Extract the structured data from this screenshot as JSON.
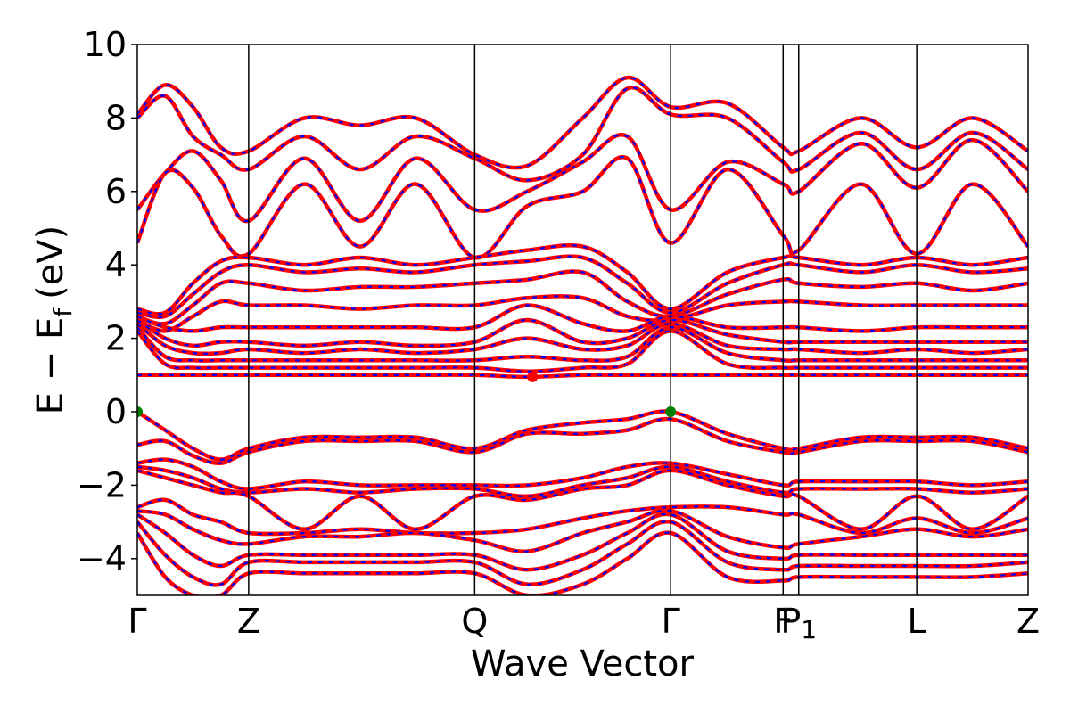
{
  "chart_data": {
    "type": "line",
    "title": "",
    "xlabel": "Wave Vector",
    "ylabel": "E − E_f (eV)",
    "ylabel_main": "E − E",
    "ylabel_sub": "f",
    "ylabel_unit": "(eV)",
    "ylim": [
      -5,
      10
    ],
    "yticks": [
      -4,
      -2,
      0,
      2,
      4,
      6,
      8,
      10
    ],
    "xlim": [
      0,
      8
    ],
    "kpoints": [
      {
        "label": "Γ",
        "x": 0
      },
      {
        "label": "Z",
        "x": 1.0
      },
      {
        "label": "Q",
        "x": 3.03
      },
      {
        "label": "Γ",
        "x": 4.79
      },
      {
        "label": "F",
        "x": 5.8
      },
      {
        "label": "P",
        "sub": "1",
        "x": 5.94
      },
      {
        "label": "L",
        "x": 7.0
      },
      {
        "label": "Z",
        "x": 8.0
      }
    ],
    "colors": {
      "band_main": "#ff0000",
      "band_dash": "#0000ff",
      "marker": "#008000",
      "marker2": "#ff0000"
    },
    "markers": [
      {
        "name": "VBM",
        "x": 0,
        "y": 0,
        "color": "#008000"
      },
      {
        "name": "VBM",
        "x": 4.79,
        "y": 0,
        "color": "#008000"
      },
      {
        "name": "CBM",
        "x": 3.55,
        "y": 0.95,
        "color": "#ff0000"
      }
    ],
    "series": [
      {
        "x": [
          0,
          0.25,
          0.5,
          0.75,
          1.0,
          1.5,
          2.0,
          2.5,
          3.03,
          3.5,
          4.0,
          4.4,
          4.79,
          5.3,
          5.8,
          5.94,
          6.5,
          7.0,
          7.5,
          8.0
        ],
        "values": [
          8.1,
          8.9,
          8.3,
          7.2,
          7.1,
          8.0,
          7.8,
          8.0,
          7.0,
          6.7,
          8.0,
          9.1,
          8.3,
          8.4,
          7.2,
          7.1,
          8.0,
          7.2,
          8.0,
          7.1
        ]
      },
      {
        "x": [
          0,
          0.25,
          0.5,
          0.75,
          1.0,
          1.5,
          2.0,
          2.5,
          3.03,
          3.5,
          4.0,
          4.4,
          4.79,
          5.3,
          5.8,
          5.94,
          6.5,
          7.0,
          7.5,
          8.0
        ],
        "values": [
          8.0,
          8.6,
          7.5,
          7.0,
          6.6,
          7.5,
          6.6,
          7.5,
          6.9,
          6.3,
          7.0,
          8.8,
          8.1,
          8.0,
          6.8,
          6.6,
          7.6,
          6.6,
          7.6,
          6.6
        ]
      },
      {
        "x": [
          0,
          0.25,
          0.5,
          0.75,
          1.0,
          1.5,
          2.0,
          2.5,
          3.03,
          3.5,
          4.0,
          4.4,
          4.79,
          5.3,
          5.8,
          5.94,
          6.5,
          7.0,
          7.5,
          8.0
        ],
        "values": [
          5.5,
          6.5,
          7.1,
          6.3,
          5.2,
          6.9,
          5.2,
          6.9,
          5.5,
          6.0,
          6.8,
          7.5,
          5.5,
          6.8,
          6.2,
          6.0,
          7.3,
          6.1,
          7.4,
          6.0
        ]
      },
      {
        "x": [
          0,
          0.25,
          0.5,
          0.75,
          1.0,
          1.5,
          2.0,
          2.5,
          3.03,
          3.5,
          4.0,
          4.4,
          4.79,
          5.3,
          5.8,
          5.94,
          6.5,
          7.0,
          7.5,
          8.0
        ],
        "values": [
          4.6,
          6.5,
          6.1,
          4.8,
          4.3,
          6.2,
          4.5,
          6.2,
          4.2,
          5.6,
          6.0,
          6.9,
          4.6,
          6.6,
          4.8,
          4.4,
          6.2,
          4.3,
          6.2,
          4.5
        ]
      },
      {
        "x": [
          0,
          0.25,
          0.5,
          0.75,
          1.0,
          1.5,
          2.0,
          2.5,
          3.03,
          3.5,
          4.0,
          4.4,
          4.79,
          5.3,
          5.8,
          5.94,
          6.5,
          7.0,
          7.5,
          8.0
        ],
        "values": [
          2.8,
          2.7,
          3.5,
          4.1,
          4.2,
          4.0,
          4.2,
          4.0,
          4.2,
          4.4,
          4.5,
          3.8,
          2.8,
          3.8,
          4.2,
          4.2,
          4.0,
          4.2,
          4.0,
          4.2
        ]
      },
      {
        "x": [
          0,
          0.25,
          0.5,
          0.75,
          1.0,
          1.5,
          2.0,
          2.5,
          3.03,
          3.5,
          4.0,
          4.4,
          4.79,
          5.3,
          5.8,
          5.94,
          6.5,
          7.0,
          7.5,
          8.0
        ],
        "values": [
          2.7,
          2.6,
          3.2,
          3.8,
          4.0,
          3.8,
          3.9,
          3.8,
          4.0,
          4.1,
          4.2,
          3.5,
          2.7,
          3.5,
          4.0,
          4.0,
          3.8,
          4.0,
          3.8,
          3.9
        ]
      },
      {
        "x": [
          0,
          0.25,
          0.5,
          0.75,
          1.0,
          1.5,
          2.0,
          2.5,
          3.03,
          3.5,
          4.0,
          4.4,
          4.79,
          5.3,
          5.8,
          5.94,
          6.5,
          7.0,
          7.5,
          8.0
        ],
        "values": [
          2.6,
          2.4,
          2.9,
          3.5,
          3.5,
          3.3,
          3.4,
          3.4,
          3.5,
          3.6,
          3.8,
          3.0,
          2.6,
          3.2,
          3.6,
          3.5,
          3.4,
          3.5,
          3.3,
          3.5
        ]
      },
      {
        "x": [
          0,
          0.25,
          0.5,
          0.75,
          1.0,
          1.5,
          2.0,
          2.5,
          3.03,
          3.5,
          4.0,
          4.4,
          4.79,
          5.3,
          5.8,
          5.94,
          6.5,
          7.0,
          7.5,
          8.0
        ],
        "values": [
          2.5,
          2.2,
          2.6,
          3.0,
          2.9,
          2.9,
          2.8,
          2.9,
          2.9,
          3.1,
          3.1,
          2.6,
          2.5,
          2.9,
          3.0,
          3.0,
          2.9,
          2.9,
          2.9,
          2.9
        ]
      },
      {
        "x": [
          0,
          0.25,
          0.5,
          0.75,
          1.0,
          1.5,
          2.0,
          2.5,
          3.03,
          3.5,
          4.0,
          4.4,
          4.79,
          5.3,
          5.8,
          5.94,
          6.5,
          7.0,
          7.5,
          8.0
        ],
        "values": [
          2.6,
          2.3,
          2.2,
          2.3,
          2.3,
          2.3,
          2.3,
          2.3,
          2.3,
          2.9,
          2.4,
          2.2,
          2.6,
          2.3,
          2.3,
          2.3,
          2.2,
          2.3,
          2.3,
          2.3
        ]
      },
      {
        "x": [
          0,
          0.25,
          0.5,
          0.75,
          1.0,
          1.5,
          2.0,
          2.5,
          3.03,
          3.5,
          4.0,
          4.4,
          4.79,
          5.3,
          5.8,
          5.94,
          6.5,
          7.0,
          7.5,
          8.0
        ],
        "values": [
          2.5,
          2.0,
          1.8,
          1.9,
          1.9,
          1.8,
          1.9,
          1.8,
          1.9,
          2.5,
          1.9,
          2.0,
          2.5,
          2.1,
          1.9,
          1.9,
          1.9,
          1.9,
          1.9,
          1.9
        ]
      },
      {
        "x": [
          0,
          0.25,
          0.5,
          0.75,
          1.0,
          1.5,
          2.0,
          2.5,
          3.03,
          3.5,
          4.0,
          4.4,
          4.79,
          5.3,
          5.8,
          5.94,
          6.5,
          7.0,
          7.5,
          8.0
        ],
        "values": [
          2.4,
          1.8,
          1.6,
          1.6,
          1.7,
          1.6,
          1.7,
          1.6,
          1.7,
          2.0,
          1.7,
          1.8,
          2.4,
          1.8,
          1.7,
          1.7,
          1.6,
          1.7,
          1.6,
          1.7
        ]
      },
      {
        "x": [
          0,
          0.25,
          0.5,
          0.75,
          1.0,
          1.5,
          2.0,
          2.5,
          3.03,
          3.5,
          4.0,
          4.4,
          4.79,
          5.3,
          5.8,
          5.94,
          6.5,
          7.0,
          7.5,
          8.0
        ],
        "values": [
          2.3,
          1.5,
          1.4,
          1.4,
          1.4,
          1.4,
          1.4,
          1.4,
          1.4,
          1.5,
          1.4,
          1.5,
          2.3,
          1.6,
          1.4,
          1.4,
          1.4,
          1.4,
          1.4,
          1.4
        ]
      },
      {
        "x": [
          0,
          0.25,
          0.5,
          0.75,
          1.0,
          1.5,
          2.0,
          2.5,
          3.03,
          3.5,
          4.0,
          4.4,
          4.79,
          5.3,
          5.8,
          5.94,
          6.5,
          7.0,
          7.5,
          8.0
        ],
        "values": [
          2.2,
          1.3,
          1.2,
          1.2,
          1.2,
          1.2,
          1.2,
          1.2,
          1.2,
          1.1,
          1.2,
          1.3,
          2.2,
          1.3,
          1.2,
          1.2,
          1.2,
          1.2,
          1.2,
          1.2
        ]
      },
      {
        "x": [
          0,
          0.25,
          0.5,
          0.75,
          1.0,
          1.5,
          2.0,
          2.5,
          3.03,
          3.5,
          4.0,
          4.4,
          4.79,
          5.3,
          5.8,
          5.94,
          6.5,
          7.0,
          7.5,
          8.0
        ],
        "values": [
          1.0,
          1.0,
          1.0,
          1.0,
          1.0,
          1.0,
          1.0,
          1.0,
          1.0,
          0.95,
          1.0,
          1.0,
          1.0,
          1.0,
          1.0,
          1.0,
          1.0,
          1.0,
          1.0,
          1.0
        ]
      },
      {
        "x": [
          0,
          0.25,
          0.5,
          0.75,
          1.0,
          1.5,
          2.0,
          2.5,
          3.03,
          3.5,
          4.0,
          4.4,
          4.79,
          5.3,
          5.8,
          5.94,
          6.5,
          7.0,
          7.5,
          8.0
        ],
        "values": [
          0.0,
          -0.5,
          -1.0,
          -1.3,
          -1.0,
          -0.7,
          -0.7,
          -0.7,
          -1.0,
          -0.5,
          -0.3,
          -0.2,
          0.0,
          -0.6,
          -1.0,
          -1.0,
          -0.7,
          -0.7,
          -0.7,
          -1.0
        ]
      },
      {
        "x": [
          0,
          0.25,
          0.5,
          0.75,
          1.0,
          1.5,
          2.0,
          2.5,
          3.03,
          3.5,
          4.0,
          4.4,
          4.79,
          5.3,
          5.8,
          5.94,
          6.5,
          7.0,
          7.5,
          8.0
        ],
        "values": [
          -0.9,
          -0.8,
          -1.2,
          -1.4,
          -1.1,
          -0.8,
          -0.8,
          -0.8,
          -1.1,
          -0.6,
          -0.6,
          -0.5,
          -0.2,
          -0.8,
          -1.1,
          -1.1,
          -0.8,
          -0.8,
          -0.8,
          -1.1
        ]
      },
      {
        "x": [
          0,
          0.25,
          0.5,
          0.75,
          1.0,
          1.5,
          2.0,
          2.5,
          3.03,
          3.5,
          4.0,
          4.4,
          4.79,
          5.3,
          5.8,
          5.94,
          6.5,
          7.0,
          7.5,
          8.0
        ],
        "values": [
          -1.4,
          -1.3,
          -1.5,
          -1.9,
          -2.1,
          -1.9,
          -2.0,
          -2.0,
          -2.0,
          -2.0,
          -1.8,
          -1.5,
          -1.4,
          -1.7,
          -2.0,
          -1.9,
          -1.9,
          -1.9,
          -2.0,
          -1.9
        ]
      },
      {
        "x": [
          0,
          0.25,
          0.5,
          0.75,
          1.0,
          1.5,
          2.0,
          2.5,
          3.03,
          3.5,
          4.0,
          4.4,
          4.79,
          5.3,
          5.8,
          5.94,
          6.5,
          7.0,
          7.5,
          8.0
        ],
        "values": [
          -1.5,
          -1.6,
          -1.8,
          -2.1,
          -2.2,
          -2.1,
          -2.2,
          -2.1,
          -2.1,
          -2.3,
          -2.0,
          -1.8,
          -1.5,
          -1.9,
          -2.2,
          -2.1,
          -2.1,
          -2.1,
          -2.2,
          -2.1
        ]
      },
      {
        "x": [
          0,
          0.25,
          0.5,
          0.75,
          1.0,
          1.5,
          2.0,
          2.5,
          3.03,
          3.5,
          4.0,
          4.4,
          4.79,
          5.3,
          5.8,
          5.94,
          6.5,
          7.0,
          7.5,
          8.0
        ],
        "values": [
          -1.6,
          -1.8,
          -2.0,
          -2.2,
          -2.3,
          -3.2,
          -2.3,
          -3.2,
          -2.3,
          -2.4,
          -2.1,
          -2.0,
          -1.6,
          -2.0,
          -2.3,
          -2.3,
          -3.2,
          -2.3,
          -3.2,
          -2.3
        ]
      },
      {
        "x": [
          0,
          0.25,
          0.5,
          0.75,
          1.0,
          1.5,
          2.0,
          2.5,
          3.03,
          3.5,
          4.0,
          4.4,
          4.79,
          5.3,
          5.8,
          5.94,
          6.5,
          7.0,
          7.5,
          8.0
        ],
        "values": [
          -2.6,
          -2.4,
          -2.8,
          -3.0,
          -3.3,
          -3.3,
          -3.2,
          -3.3,
          -3.3,
          -3.2,
          -2.9,
          -2.7,
          -2.6,
          -2.6,
          -2.8,
          -2.8,
          -3.3,
          -2.9,
          -3.3,
          -2.9
        ]
      },
      {
        "x": [
          0,
          0.25,
          0.5,
          0.75,
          1.0,
          1.5,
          2.0,
          2.5,
          3.03,
          3.5,
          4.0,
          4.4,
          4.79,
          5.3,
          5.8,
          5.94,
          6.5,
          7.0,
          7.5,
          8.0
        ],
        "values": [
          -2.7,
          -2.8,
          -3.2,
          -3.5,
          -3.6,
          -3.4,
          -3.4,
          -3.3,
          -3.5,
          -3.8,
          -3.3,
          -3.0,
          -2.7,
          -3.4,
          -3.7,
          -3.6,
          -3.4,
          -3.2,
          -3.4,
          -3.2
        ]
      },
      {
        "x": [
          0,
          0.25,
          0.5,
          0.75,
          1.0,
          1.5,
          2.0,
          2.5,
          3.03,
          3.5,
          4.0,
          4.4,
          4.79,
          5.3,
          5.8,
          5.94,
          6.5,
          7.0,
          7.5,
          8.0
        ],
        "values": [
          -2.8,
          -3.3,
          -3.9,
          -4.2,
          -3.9,
          -3.9,
          -3.9,
          -3.9,
          -3.9,
          -4.3,
          -3.9,
          -3.3,
          -2.8,
          -3.8,
          -4.0,
          -3.9,
          -3.9,
          -3.9,
          -3.9,
          -3.9
        ]
      },
      {
        "x": [
          0,
          0.25,
          0.5,
          0.75,
          1.0,
          1.5,
          2.0,
          2.5,
          3.03,
          3.5,
          4.0,
          4.4,
          4.79,
          5.3,
          5.8,
          5.94,
          6.5,
          7.0,
          7.5,
          8.0
        ],
        "values": [
          -3.0,
          -3.9,
          -4.5,
          -4.7,
          -4.1,
          -4.1,
          -4.1,
          -4.1,
          -4.1,
          -4.7,
          -4.3,
          -3.6,
          -3.0,
          -4.1,
          -4.3,
          -4.2,
          -4.2,
          -4.2,
          -4.2,
          -4.1
        ]
      },
      {
        "x": [
          0,
          0.25,
          0.5,
          0.75,
          1.0,
          1.5,
          2.0,
          2.5,
          3.03,
          3.5,
          4.0,
          4.4,
          4.79,
          5.3,
          5.8,
          5.94,
          6.5,
          7.0,
          7.5,
          8.0
        ],
        "values": [
          -3.3,
          -4.5,
          -5.0,
          -5.0,
          -4.4,
          -4.4,
          -4.4,
          -4.4,
          -4.4,
          -5.0,
          -4.7,
          -4.0,
          -3.3,
          -4.5,
          -4.6,
          -4.5,
          -4.5,
          -4.5,
          -4.5,
          -4.4
        ]
      }
    ]
  }
}
